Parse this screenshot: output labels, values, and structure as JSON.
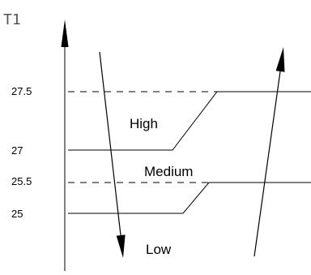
{
  "axis": {
    "title": "T1"
  },
  "ticks": {
    "t27_5": "27.5",
    "t27": "27",
    "t25_5": "25.5",
    "t25": "25"
  },
  "regions": {
    "high": "High",
    "medium": "Medium",
    "low": "Low"
  }
}
